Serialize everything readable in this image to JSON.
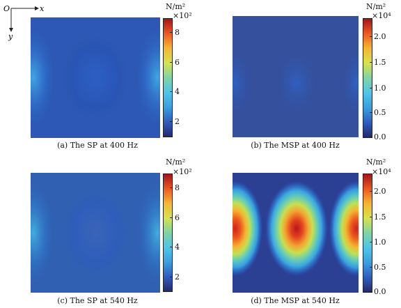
{
  "axes": {
    "origin": "O",
    "x": "x",
    "y": "y"
  },
  "colorbar_gradient": [
    "#24296e",
    "#2f5dbf",
    "#3a9fe0",
    "#4dc6e8",
    "#7fd4a4",
    "#d6e34c",
    "#f5b632",
    "#ec5a1f",
    "#a3151a"
  ],
  "panels": [
    {
      "caption": "(a) The SP at 400 Hz",
      "unit": "N/m²",
      "exponent": "×10²",
      "ticks": [
        "8",
        "6",
        "4",
        "2"
      ]
    },
    {
      "caption": "(b) The MSP at 400 Hz",
      "unit": "N/m²",
      "exponent": "×10⁴",
      "ticks": [
        "2.0",
        "1.5",
        "1.0",
        "0.5",
        "0.0"
      ]
    },
    {
      "caption": "(c) The SP at 540 Hz",
      "unit": "N/m²",
      "exponent": "×10²",
      "ticks": [
        "8",
        "6",
        "4",
        "2"
      ]
    },
    {
      "caption": "(d) The MSP at 540 Hz",
      "unit": "N/m²",
      "exponent": "×10⁴",
      "ticks": [
        "2.0",
        "1.5",
        "1.0",
        "0.5",
        "0.0"
      ]
    }
  ]
}
